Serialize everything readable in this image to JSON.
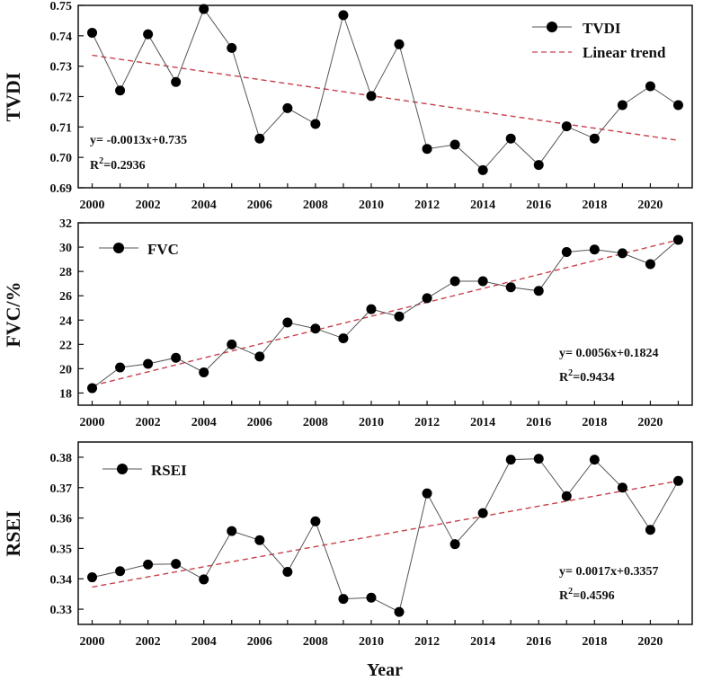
{
  "chart_data": [
    {
      "type": "line",
      "id": "tvdi",
      "ylabel": "TVDI",
      "xlabel": "",
      "ylim": [
        0.69,
        0.75
      ],
      "yticks": [
        "0.69",
        "0.70",
        "0.71",
        "0.72",
        "0.73",
        "0.74",
        "0.75"
      ],
      "xlim": [
        1999.5,
        2021.5
      ],
      "xticks": [
        "2000",
        "2002",
        "2004",
        "2006",
        "2008",
        "2010",
        "2012",
        "2014",
        "2016",
        "2018",
        "2020"
      ],
      "x": [
        2000,
        2001,
        2002,
        2003,
        2004,
        2005,
        2006,
        2007,
        2008,
        2009,
        2010,
        2011,
        2012,
        2013,
        2014,
        2015,
        2016,
        2017,
        2018,
        2019,
        2020,
        2021
      ],
      "series": [
        {
          "name": "TVDI",
          "values": [
            0.741,
            0.722,
            0.7405,
            0.7248,
            0.7488,
            0.736,
            0.7062,
            0.7162,
            0.711,
            0.7468,
            0.7202,
            0.7372,
            0.7028,
            0.7042,
            0.6958,
            0.7062,
            0.6975,
            0.7102,
            0.7062,
            0.7172,
            0.7234,
            0.7172
          ]
        }
      ],
      "trend": {
        "name": "Linear trend",
        "slope": -0.0013,
        "intercept": 0.735,
        "start": 0.7336,
        "end": 0.7056
      },
      "legend_position": "top-right",
      "equation": "y= -0.0013x+0.735",
      "r2_prefix": "R",
      "r2_sup": "2",
      "r2_value": "=0.2936"
    },
    {
      "type": "line",
      "id": "fvc",
      "ylabel": "FVC/%",
      "xlabel": "",
      "ylim": [
        17,
        32
      ],
      "yticks": [
        "18",
        "20",
        "22",
        "24",
        "26",
        "28",
        "30",
        "32"
      ],
      "xlim": [
        1999.5,
        2021.5
      ],
      "xticks": [
        "2000",
        "2002",
        "2004",
        "2006",
        "2008",
        "2010",
        "2012",
        "2014",
        "2016",
        "2018",
        "2020"
      ],
      "x": [
        2000,
        2001,
        2002,
        2003,
        2004,
        2005,
        2006,
        2007,
        2008,
        2009,
        2010,
        2011,
        2012,
        2013,
        2014,
        2015,
        2016,
        2017,
        2018,
        2019,
        2020,
        2021
      ],
      "series": [
        {
          "name": "FVC",
          "values": [
            18.4,
            20.1,
            20.4,
            20.9,
            19.7,
            22.0,
            21.0,
            23.8,
            23.3,
            22.5,
            24.9,
            24.3,
            25.8,
            27.2,
            27.2,
            26.7,
            26.4,
            29.6,
            29.8,
            29.5,
            28.6,
            30.6
          ]
        }
      ],
      "trend": {
        "start": 18.6,
        "end": 30.6
      },
      "legend_position": "top-left",
      "equation": "y= 0.0056x+0.1824",
      "r2_prefix": "R",
      "r2_sup": "2",
      "r2_value": "=0.9434"
    },
    {
      "type": "line",
      "id": "rsei",
      "ylabel": "RSEI",
      "xlabel": "Year",
      "ylim": [
        0.325,
        0.385
      ],
      "yticks": [
        "0.33",
        "0.34",
        "0.35",
        "0.36",
        "0.37",
        "0.38"
      ],
      "xlim": [
        1999.5,
        2021.5
      ],
      "xticks": [
        "2000",
        "2002",
        "2004",
        "2006",
        "2008",
        "2010",
        "2012",
        "2014",
        "2016",
        "2018",
        "2020"
      ],
      "x": [
        2000,
        2001,
        2002,
        2003,
        2004,
        2005,
        2006,
        2007,
        2008,
        2009,
        2010,
        2011,
        2012,
        2013,
        2014,
        2015,
        2016,
        2017,
        2018,
        2019,
        2020,
        2021
      ],
      "series": [
        {
          "name": "RSEI",
          "values": [
            0.3405,
            0.3425,
            0.3447,
            0.3449,
            0.3398,
            0.3557,
            0.3527,
            0.3423,
            0.3589,
            0.3334,
            0.3338,
            0.3291,
            0.3681,
            0.3514,
            0.3616,
            0.3792,
            0.3795,
            0.3672,
            0.3792,
            0.37,
            0.3561,
            0.3722
          ]
        }
      ],
      "trend": {
        "start": 0.3373,
        "end": 0.3722
      },
      "legend_position": "top-left",
      "equation": "y= 0.0017x+0.3357",
      "r2_prefix": "R",
      "r2_sup": "2",
      "r2_value": "=0.4596"
    }
  ],
  "colors": {
    "line": "#555555",
    "marker": "#000000",
    "trend": "#c8404a",
    "axis": "#111111"
  }
}
